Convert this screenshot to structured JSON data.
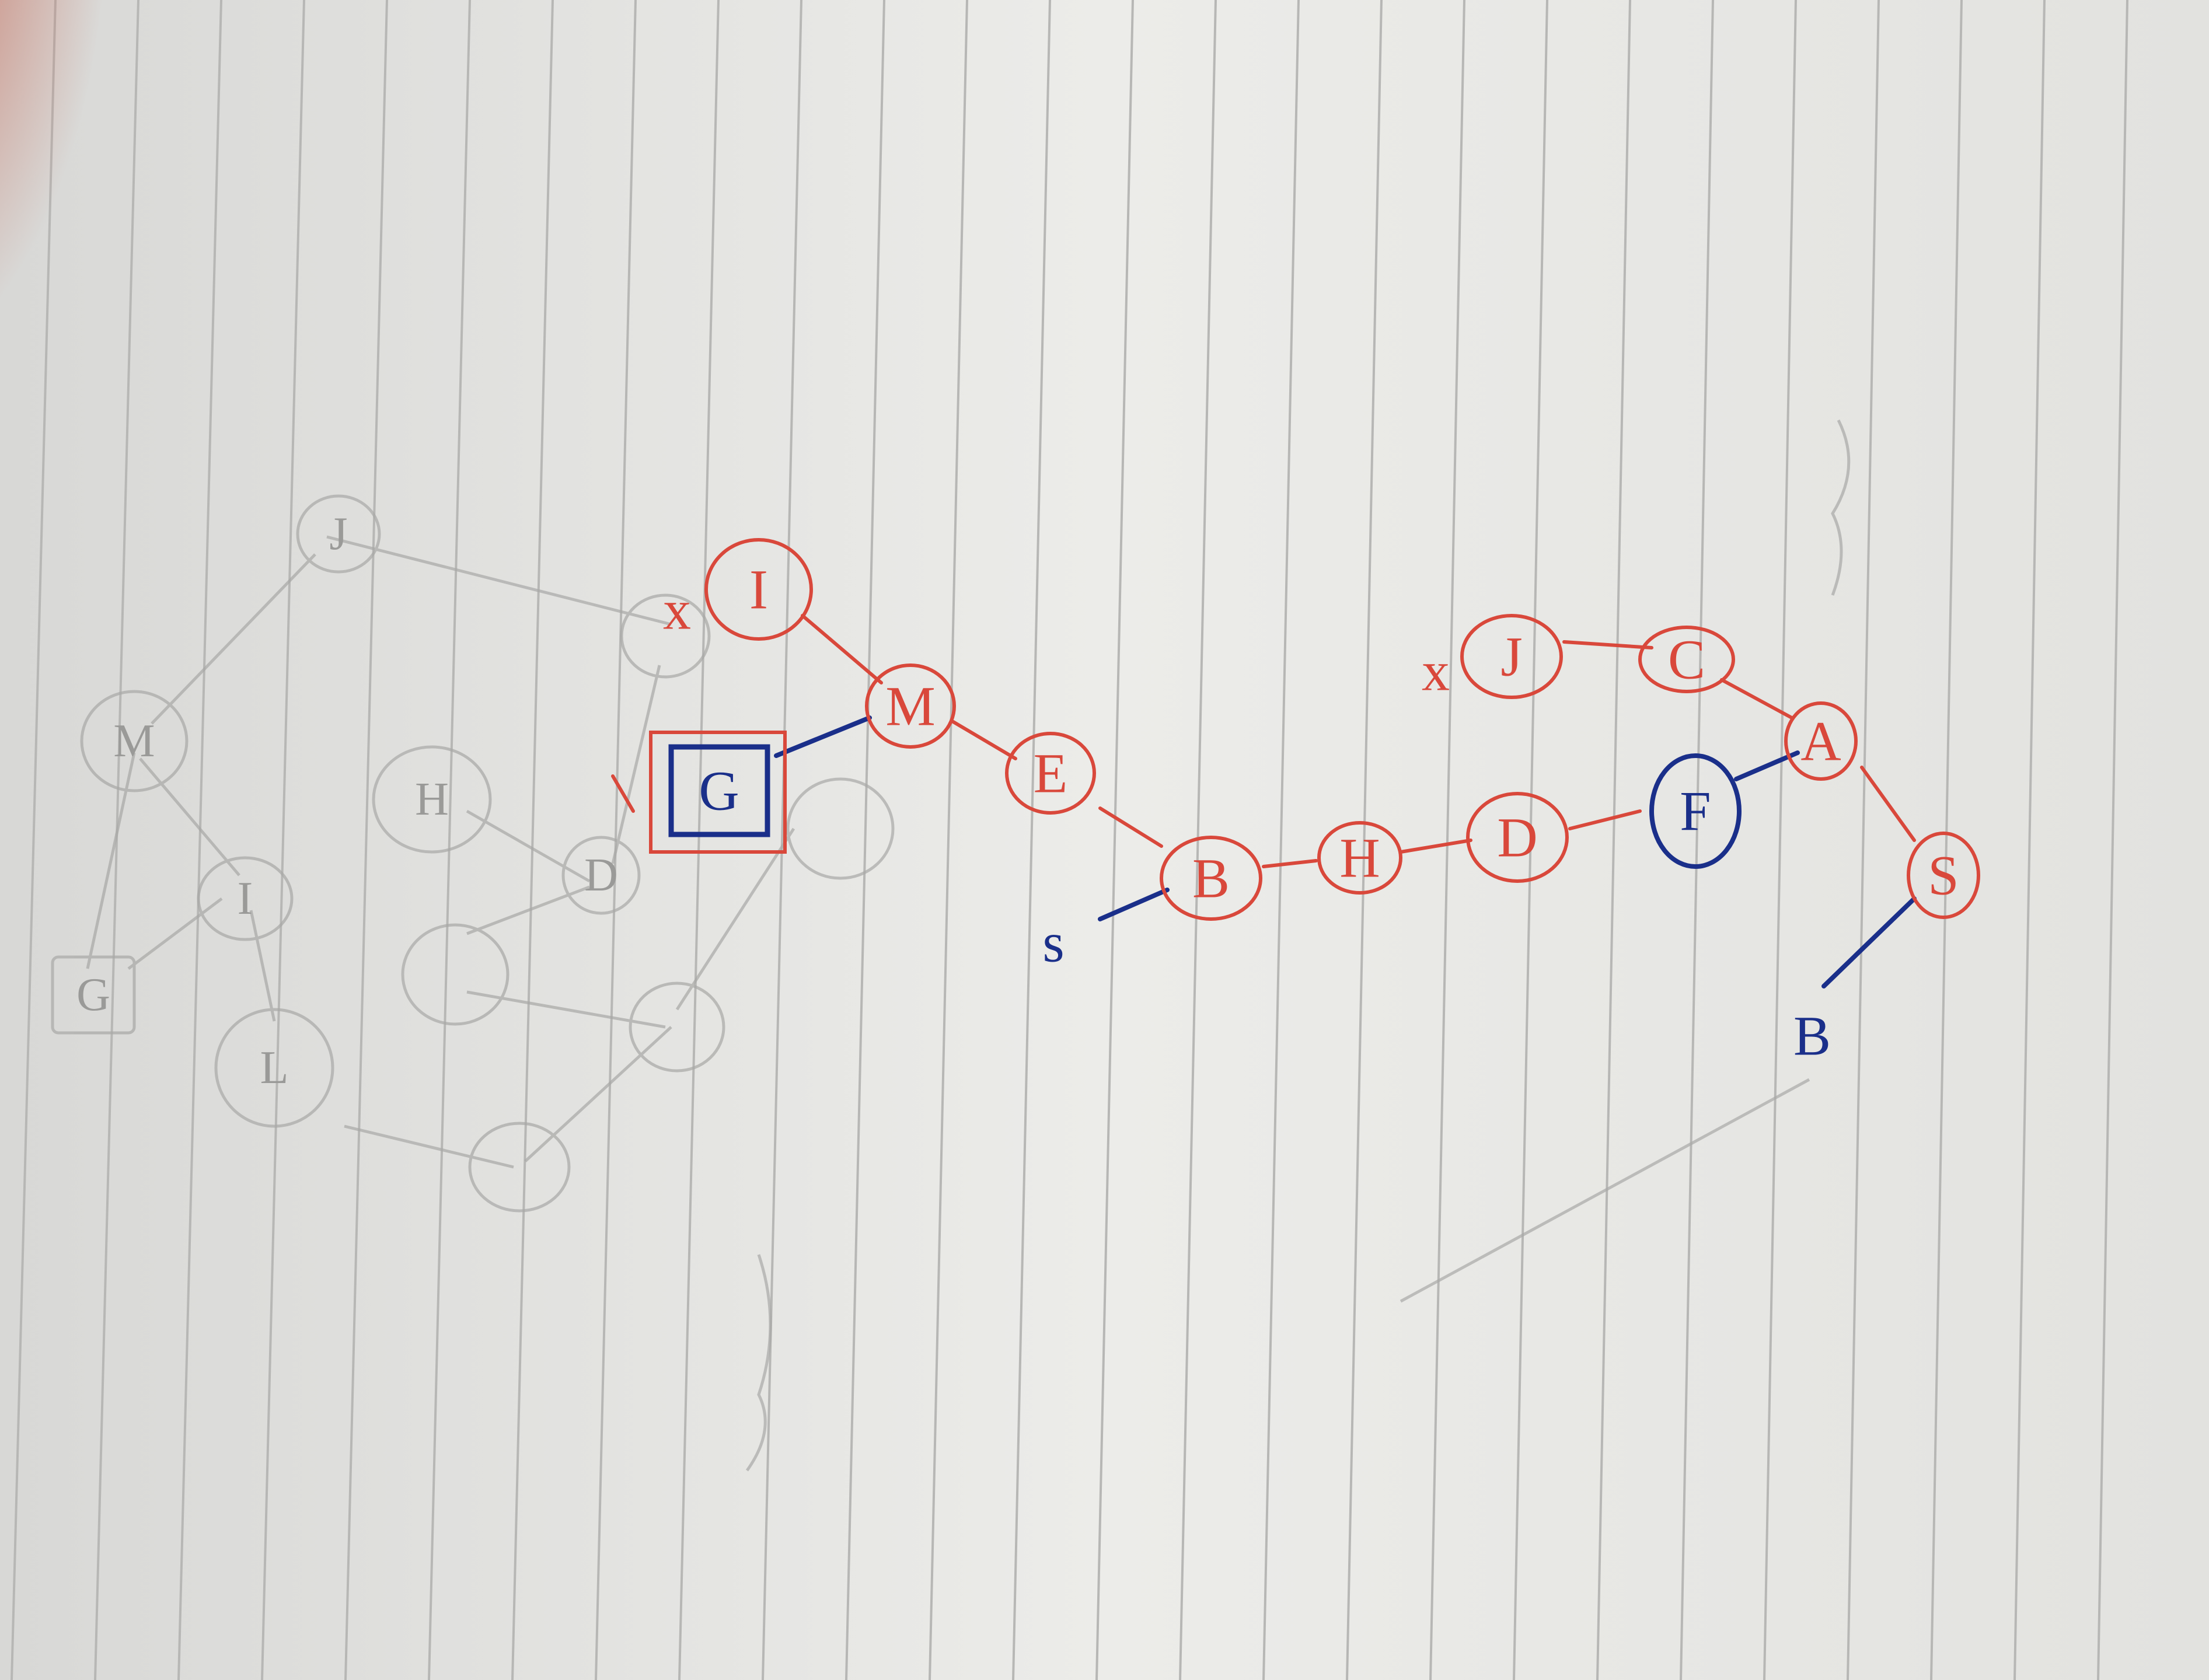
{
  "colors": {
    "paper": "#e9e9e7",
    "rule_line": "#b7b7b5",
    "red_ink": "#d9483b",
    "blue_ink": "#1a2f8a",
    "pencil": "#9a9a98"
  },
  "red_nodes": [
    "S",
    "A",
    "C",
    "J",
    "F",
    "D",
    "H",
    "B",
    "E",
    "M",
    "I",
    "G"
  ],
  "red_edges": [
    [
      "S",
      "A"
    ],
    [
      "A",
      "C"
    ],
    [
      "C",
      "J"
    ],
    [
      "A",
      "F"
    ],
    [
      "F",
      "D"
    ],
    [
      "D",
      "H"
    ],
    [
      "H",
      "B"
    ],
    [
      "B",
      "E"
    ],
    [
      "E",
      "M"
    ],
    [
      "M",
      "I"
    ],
    [
      "M",
      "G"
    ]
  ],
  "blue_circled_node": "F",
  "boxed_goal_node": "G",
  "marks": {
    "x_near_j": "x",
    "x_near_i": "x",
    "blue_label_near_s": "B",
    "blue_label_near_b": "s"
  },
  "pencil_nodes": [
    "J",
    "M",
    "I",
    "L",
    "H",
    "D",
    "G"
  ]
}
